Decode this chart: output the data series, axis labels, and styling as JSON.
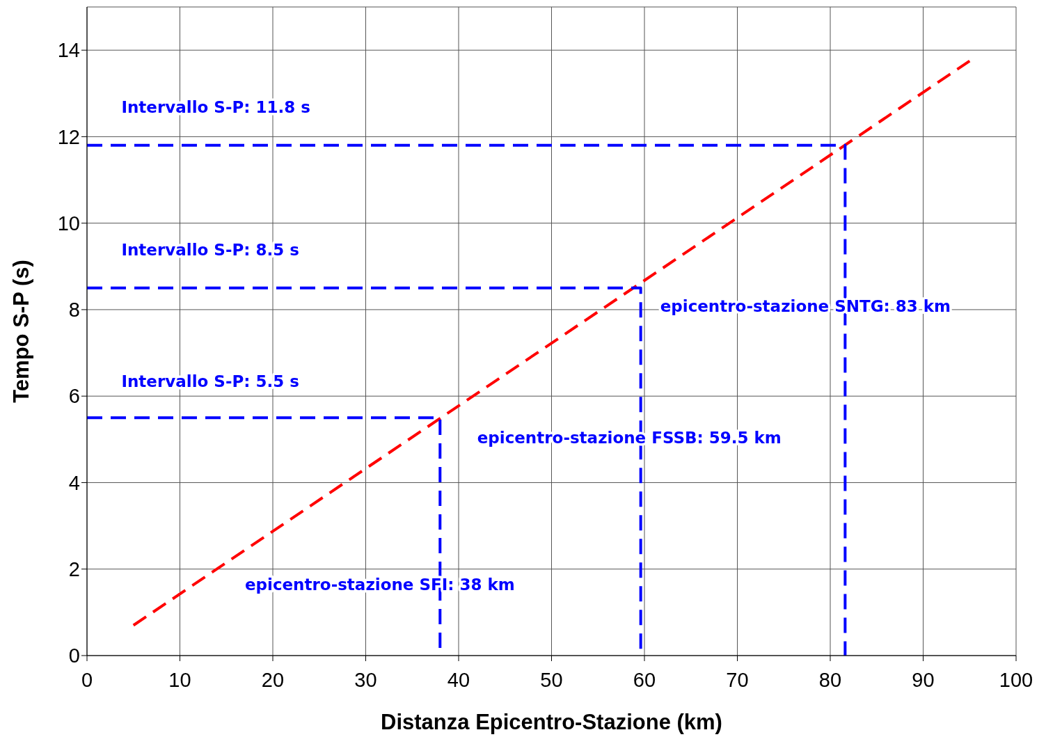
{
  "chart_data": {
    "type": "line",
    "xlabel": "Distanza Epicentro-Stazione (km)",
    "ylabel": "Tempo S-P (s)",
    "xlim": [
      0,
      100
    ],
    "xticks": [
      0,
      10,
      20,
      30,
      40,
      50,
      60,
      70,
      80,
      90,
      100
    ],
    "ylim": [
      0,
      15
    ],
    "yticks": [
      0,
      2,
      4,
      6,
      8,
      10,
      12,
      14
    ],
    "grid": true,
    "marker": "none",
    "line_style": "dashed",
    "series": [
      {
        "color": "#ff0000",
        "x": [
          5,
          95
        ],
        "values": [
          0.7,
          13.75
        ]
      },
      {
        "color": "#0000ff",
        "x": [
          0,
          38,
          38
        ],
        "values": [
          5.5,
          5.5,
          0
        ]
      },
      {
        "color": "#0000ff",
        "x": [
          0,
          59.6,
          59.6
        ],
        "values": [
          8.5,
          8.5,
          0
        ]
      },
      {
        "color": "#0000ff",
        "x": [
          0,
          81.6,
          81.6
        ],
        "values": [
          11.8,
          11.8,
          0
        ]
      }
    ],
    "annotations": [
      "Intervallo S-P: 11.8 s",
      "Intervallo S-P: 8.5 s",
      "Intervallo S-P: 5.5 s",
      "epicentro-stazione SNTG: 83 km",
      "epicentro-stazione FSSB: 59.5 km",
      "epicentro-stazione SFI: 38 km"
    ]
  }
}
